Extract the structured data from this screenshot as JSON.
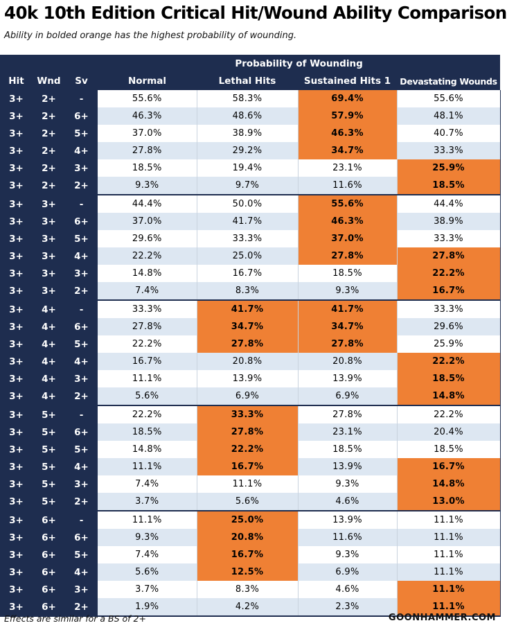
{
  "title": "40k 10th Edition Critical Hit/Wound Ability Comparison",
  "subtitle": "Ability in bolded orange has the highest probability of wounding.",
  "footer_note": "Effects are similar for a BS of 2+",
  "footer_brand": "GOONHAMMER.COM",
  "colors": {
    "header_bg": "#1e2d4f",
    "highlight": "#ef8034",
    "stripe": "#dde7f2"
  },
  "chart_data": {
    "type": "table",
    "group_header": "Probability of Wounding",
    "columns": [
      "Hit",
      "Wnd",
      "Sv",
      "Normal",
      "Lethal Hits",
      "Sustained Hits 1",
      "Devastating Wounds"
    ],
    "rows": [
      {
        "hit": "3+",
        "wnd": "2+",
        "sv": "-",
        "normal": "55.6%",
        "lethal": "58.3%",
        "sustained": "69.4%",
        "devastating": "55.6%",
        "best": [
          "sustained"
        ]
      },
      {
        "hit": "3+",
        "wnd": "2+",
        "sv": "6+",
        "normal": "46.3%",
        "lethal": "48.6%",
        "sustained": "57.9%",
        "devastating": "48.1%",
        "best": [
          "sustained"
        ]
      },
      {
        "hit": "3+",
        "wnd": "2+",
        "sv": "5+",
        "normal": "37.0%",
        "lethal": "38.9%",
        "sustained": "46.3%",
        "devastating": "40.7%",
        "best": [
          "sustained"
        ]
      },
      {
        "hit": "3+",
        "wnd": "2+",
        "sv": "4+",
        "normal": "27.8%",
        "lethal": "29.2%",
        "sustained": "34.7%",
        "devastating": "33.3%",
        "best": [
          "sustained"
        ]
      },
      {
        "hit": "3+",
        "wnd": "2+",
        "sv": "3+",
        "normal": "18.5%",
        "lethal": "19.4%",
        "sustained": "23.1%",
        "devastating": "25.9%",
        "best": [
          "devastating"
        ]
      },
      {
        "hit": "3+",
        "wnd": "2+",
        "sv": "2+",
        "normal": "9.3%",
        "lethal": "9.7%",
        "sustained": "11.6%",
        "devastating": "18.5%",
        "best": [
          "devastating"
        ]
      },
      {
        "hit": "3+",
        "wnd": "3+",
        "sv": "-",
        "normal": "44.4%",
        "lethal": "50.0%",
        "sustained": "55.6%",
        "devastating": "44.4%",
        "best": [
          "sustained"
        ]
      },
      {
        "hit": "3+",
        "wnd": "3+",
        "sv": "6+",
        "normal": "37.0%",
        "lethal": "41.7%",
        "sustained": "46.3%",
        "devastating": "38.9%",
        "best": [
          "sustained"
        ]
      },
      {
        "hit": "3+",
        "wnd": "3+",
        "sv": "5+",
        "normal": "29.6%",
        "lethal": "33.3%",
        "sustained": "37.0%",
        "devastating": "33.3%",
        "best": [
          "sustained"
        ]
      },
      {
        "hit": "3+",
        "wnd": "3+",
        "sv": "4+",
        "normal": "22.2%",
        "lethal": "25.0%",
        "sustained": "27.8%",
        "devastating": "27.8%",
        "best": [
          "sustained",
          "devastating"
        ]
      },
      {
        "hit": "3+",
        "wnd": "3+",
        "sv": "3+",
        "normal": "14.8%",
        "lethal": "16.7%",
        "sustained": "18.5%",
        "devastating": "22.2%",
        "best": [
          "devastating"
        ]
      },
      {
        "hit": "3+",
        "wnd": "3+",
        "sv": "2+",
        "normal": "7.4%",
        "lethal": "8.3%",
        "sustained": "9.3%",
        "devastating": "16.7%",
        "best": [
          "devastating"
        ]
      },
      {
        "hit": "3+",
        "wnd": "4+",
        "sv": "-",
        "normal": "33.3%",
        "lethal": "41.7%",
        "sustained": "41.7%",
        "devastating": "33.3%",
        "best": [
          "lethal",
          "sustained"
        ]
      },
      {
        "hit": "3+",
        "wnd": "4+",
        "sv": "6+",
        "normal": "27.8%",
        "lethal": "34.7%",
        "sustained": "34.7%",
        "devastating": "29.6%",
        "best": [
          "lethal",
          "sustained"
        ]
      },
      {
        "hit": "3+",
        "wnd": "4+",
        "sv": "5+",
        "normal": "22.2%",
        "lethal": "27.8%",
        "sustained": "27.8%",
        "devastating": "25.9%",
        "best": [
          "lethal",
          "sustained"
        ]
      },
      {
        "hit": "3+",
        "wnd": "4+",
        "sv": "4+",
        "normal": "16.7%",
        "lethal": "20.8%",
        "sustained": "20.8%",
        "devastating": "22.2%",
        "best": [
          "devastating"
        ]
      },
      {
        "hit": "3+",
        "wnd": "4+",
        "sv": "3+",
        "normal": "11.1%",
        "lethal": "13.9%",
        "sustained": "13.9%",
        "devastating": "18.5%",
        "best": [
          "devastating"
        ]
      },
      {
        "hit": "3+",
        "wnd": "4+",
        "sv": "2+",
        "normal": "5.6%",
        "lethal": "6.9%",
        "sustained": "6.9%",
        "devastating": "14.8%",
        "best": [
          "devastating"
        ]
      },
      {
        "hit": "3+",
        "wnd": "5+",
        "sv": "-",
        "normal": "22.2%",
        "lethal": "33.3%",
        "sustained": "27.8%",
        "devastating": "22.2%",
        "best": [
          "lethal"
        ]
      },
      {
        "hit": "3+",
        "wnd": "5+",
        "sv": "6+",
        "normal": "18.5%",
        "lethal": "27.8%",
        "sustained": "23.1%",
        "devastating": "20.4%",
        "best": [
          "lethal"
        ]
      },
      {
        "hit": "3+",
        "wnd": "5+",
        "sv": "5+",
        "normal": "14.8%",
        "lethal": "22.2%",
        "sustained": "18.5%",
        "devastating": "18.5%",
        "best": [
          "lethal"
        ]
      },
      {
        "hit": "3+",
        "wnd": "5+",
        "sv": "4+",
        "normal": "11.1%",
        "lethal": "16.7%",
        "sustained": "13.9%",
        "devastating": "16.7%",
        "best": [
          "lethal",
          "devastating"
        ]
      },
      {
        "hit": "3+",
        "wnd": "5+",
        "sv": "3+",
        "normal": "7.4%",
        "lethal": "11.1%",
        "sustained": "9.3%",
        "devastating": "14.8%",
        "best": [
          "devastating"
        ]
      },
      {
        "hit": "3+",
        "wnd": "5+",
        "sv": "2+",
        "normal": "3.7%",
        "lethal": "5.6%",
        "sustained": "4.6%",
        "devastating": "13.0%",
        "best": [
          "devastating"
        ]
      },
      {
        "hit": "3+",
        "wnd": "6+",
        "sv": "-",
        "normal": "11.1%",
        "lethal": "25.0%",
        "sustained": "13.9%",
        "devastating": "11.1%",
        "best": [
          "lethal"
        ]
      },
      {
        "hit": "3+",
        "wnd": "6+",
        "sv": "6+",
        "normal": "9.3%",
        "lethal": "20.8%",
        "sustained": "11.6%",
        "devastating": "11.1%",
        "best": [
          "lethal"
        ]
      },
      {
        "hit": "3+",
        "wnd": "6+",
        "sv": "5+",
        "normal": "7.4%",
        "lethal": "16.7%",
        "sustained": "9.3%",
        "devastating": "11.1%",
        "best": [
          "lethal"
        ]
      },
      {
        "hit": "3+",
        "wnd": "6+",
        "sv": "4+",
        "normal": "5.6%",
        "lethal": "12.5%",
        "sustained": "6.9%",
        "devastating": "11.1%",
        "best": [
          "lethal"
        ]
      },
      {
        "hit": "3+",
        "wnd": "6+",
        "sv": "3+",
        "normal": "3.7%",
        "lethal": "8.3%",
        "sustained": "4.6%",
        "devastating": "11.1%",
        "best": [
          "devastating"
        ]
      },
      {
        "hit": "3+",
        "wnd": "6+",
        "sv": "2+",
        "normal": "1.9%",
        "lethal": "4.2%",
        "sustained": "2.3%",
        "devastating": "11.1%",
        "best": [
          "devastating"
        ]
      }
    ]
  }
}
